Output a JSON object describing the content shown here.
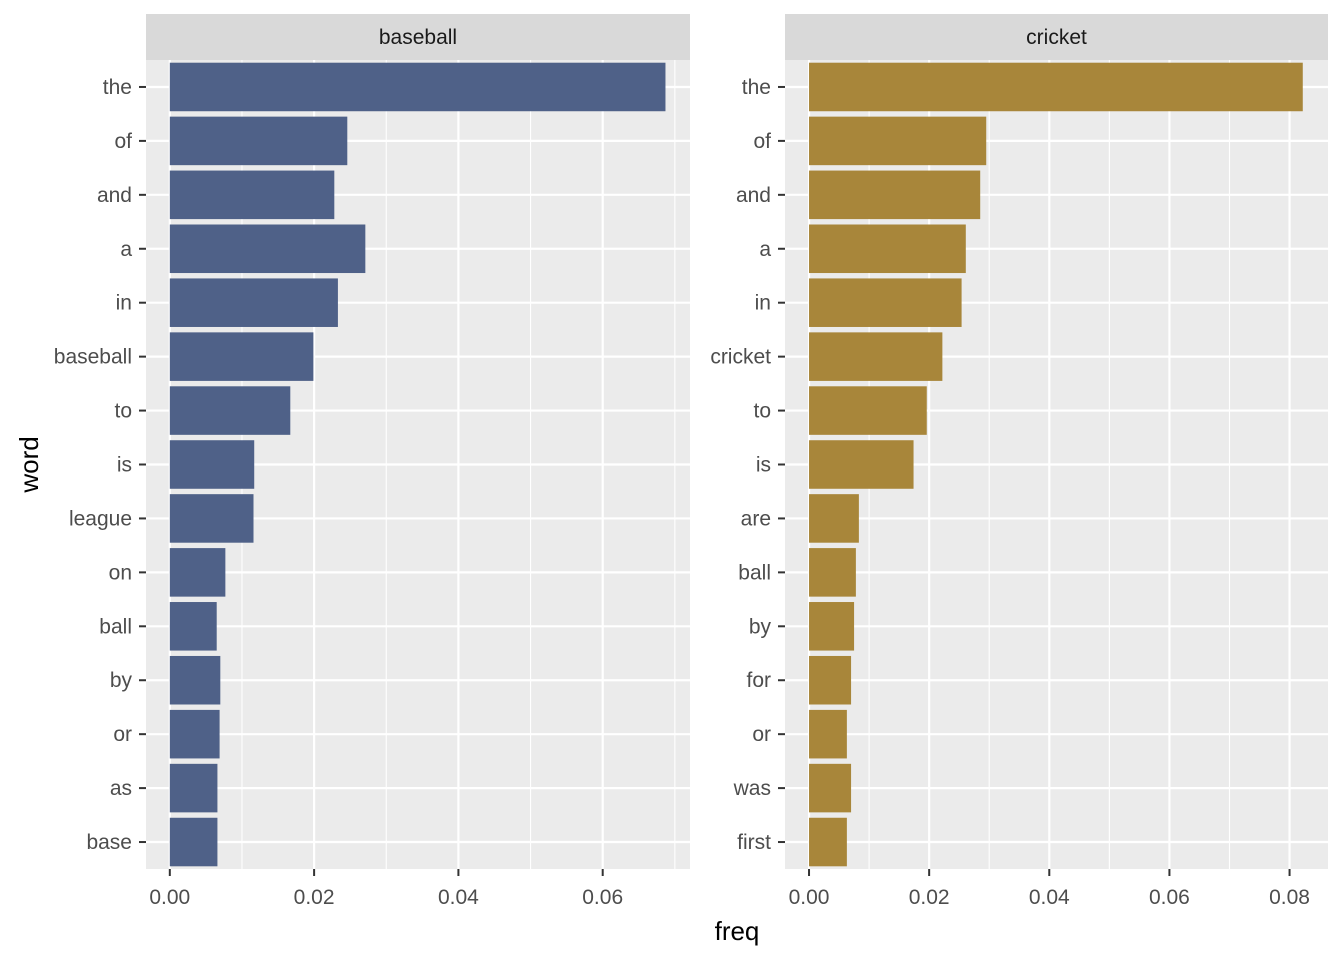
{
  "chart_data": {
    "type": "bar",
    "orientation": "horizontal",
    "xlabel": "freq",
    "ylabel": "word",
    "grid": true,
    "panels": [
      {
        "title": "baseball",
        "color": "#4F6188",
        "xlim": [
          -0.0033,
          0.0721
        ],
        "xticks": [
          "0.00",
          "0.02",
          "0.04",
          "0.06"
        ],
        "xtick_values": [
          0,
          0.02,
          0.04,
          0.06
        ],
        "categories": [
          "the",
          "of",
          "and",
          "a",
          "in",
          "baseball",
          "to",
          "is",
          "league",
          "on",
          "ball",
          "by",
          "or",
          "as",
          "base"
        ],
        "values": [
          0.0687,
          0.0246,
          0.0228,
          0.0271,
          0.0233,
          0.0199,
          0.0167,
          0.0117,
          0.0116,
          0.0077,
          0.0065,
          0.007,
          0.0069,
          0.0066,
          0.0066
        ]
      },
      {
        "title": "cricket",
        "color": "#A8863A",
        "xlim": [
          -0.004,
          0.0864
        ],
        "xticks": [
          "0.00",
          "0.02",
          "0.04",
          "0.06",
          "0.08"
        ],
        "xtick_values": [
          0,
          0.02,
          0.04,
          0.06,
          0.08
        ],
        "categories": [
          "the",
          "of",
          "and",
          "a",
          "in",
          "cricket",
          "to",
          "is",
          "are",
          "ball",
          "by",
          "for",
          "or",
          "was",
          "first"
        ],
        "values": [
          0.0822,
          0.0295,
          0.0285,
          0.0261,
          0.0254,
          0.0222,
          0.0196,
          0.0174,
          0.0083,
          0.0078,
          0.0075,
          0.007,
          0.0063,
          0.007,
          0.0063
        ]
      }
    ]
  }
}
